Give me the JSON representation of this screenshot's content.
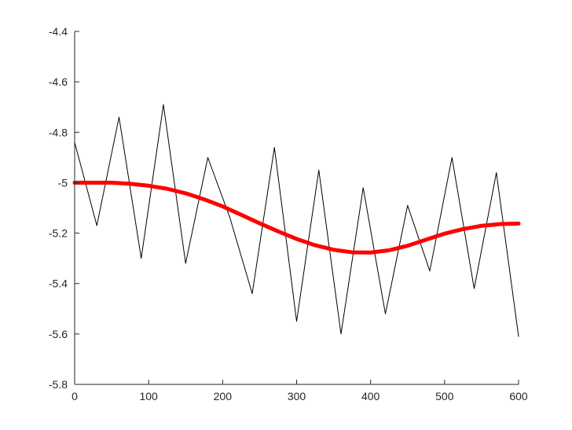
{
  "chart_data": {
    "type": "line",
    "title": "",
    "xlabel": "",
    "ylabel": "",
    "xlim": [
      0,
      600
    ],
    "ylim": [
      -5.8,
      -4.4
    ],
    "x_ticks": [
      0,
      100,
      200,
      300,
      400,
      500,
      600
    ],
    "y_ticks": [
      -4.4,
      -4.6,
      -4.8,
      -5,
      -5.2,
      -5.4,
      -5.6,
      -5.8
    ],
    "x_tick_labels": [
      "0",
      "100",
      "200",
      "300",
      "400",
      "500",
      "600"
    ],
    "y_tick_labels": [
      "-4.4",
      "-4.6",
      "-4.8",
      "-5",
      "-5.2",
      "-5.4",
      "-5.6",
      "-5.8"
    ],
    "grid": false,
    "legend": "none",
    "series": [
      {
        "kind": "noisy-signal",
        "color": "#000000",
        "x": [
          0,
          30,
          60,
          90,
          120,
          150,
          180,
          210,
          240,
          270,
          300,
          330,
          360,
          390,
          420,
          450,
          480,
          510,
          540,
          570,
          600
        ],
        "values": [
          -4.84,
          -5.17,
          -4.74,
          -5.3,
          -4.69,
          -5.32,
          -4.9,
          -5.14,
          -5.44,
          -4.86,
          -5.55,
          -4.95,
          -5.6,
          -5.02,
          -5.52,
          -5.09,
          -5.35,
          -4.9,
          -5.42,
          -4.96,
          -5.61
        ]
      },
      {
        "kind": "smooth-trend",
        "color": "#ff0000",
        "x": [
          0,
          25,
          50,
          75,
          100,
          125,
          150,
          175,
          200,
          225,
          250,
          275,
          300,
          325,
          350,
          375,
          400,
          425,
          450,
          475,
          500,
          525,
          550,
          575,
          600
        ],
        "values": [
          -5.0,
          -5.0,
          -5.0,
          -5.004,
          -5.012,
          -5.024,
          -5.042,
          -5.066,
          -5.094,
          -5.127,
          -5.161,
          -5.193,
          -5.223,
          -5.248,
          -5.266,
          -5.276,
          -5.277,
          -5.268,
          -5.25,
          -5.226,
          -5.202,
          -5.184,
          -5.171,
          -5.164,
          -5.162
        ]
      }
    ]
  }
}
